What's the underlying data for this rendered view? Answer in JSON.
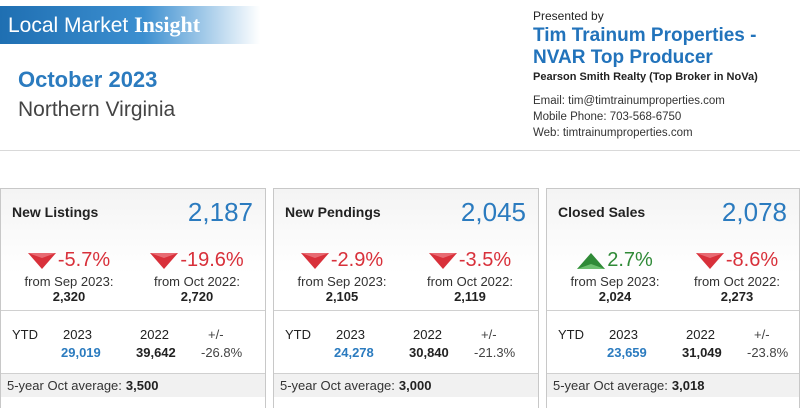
{
  "header": {
    "banner_light": "Local Market ",
    "banner_bold": "Insight",
    "month": "October 2023",
    "region": "Northern Virginia"
  },
  "presenter": {
    "presented_by": "Presented by",
    "name_line1": "Tim Trainum Properties -",
    "name_line2": "NVAR Top Producer",
    "brokerage": "Pearson Smith Realty (Top Broker in NoVa)",
    "email": "Email: tim@timtrainumproperties.com",
    "phone": "Mobile Phone: 703-568-6750",
    "web": "Web: timtrainumproperties.com"
  },
  "colors": {
    "accent": "#2b7bbf",
    "down": "#d8303a",
    "up": "#2f8a37"
  },
  "cards": [
    {
      "title": "New Listings",
      "total": "2,187",
      "mom": {
        "direction": "down",
        "pct": "-5.7%",
        "from": "from Sep 2023:",
        "prior": "2,320"
      },
      "yoy": {
        "direction": "down",
        "pct": "-19.6%",
        "from": "from Oct 2022:",
        "prior": "2,720"
      },
      "ytd": {
        "label": "YTD",
        "year1": "2023",
        "year2": "2022",
        "pm_label": "+/-",
        "val1": "29,019",
        "val2": "39,642",
        "pm": "-26.8%"
      },
      "avg": {
        "label": "5-year Oct average:",
        "value": "3,500"
      }
    },
    {
      "title": "New Pendings",
      "total": "2,045",
      "mom": {
        "direction": "down",
        "pct": "-2.9%",
        "from": "from Sep 2023:",
        "prior": "2,105"
      },
      "yoy": {
        "direction": "down",
        "pct": "-3.5%",
        "from": "from Oct 2022:",
        "prior": "2,119"
      },
      "ytd": {
        "label": "YTD",
        "year1": "2023",
        "year2": "2022",
        "pm_label": "+/-",
        "val1": "24,278",
        "val2": "30,840",
        "pm": "-21.3%"
      },
      "avg": {
        "label": "5-year Oct average:",
        "value": "3,000"
      }
    },
    {
      "title": "Closed Sales",
      "total": "2,078",
      "mom": {
        "direction": "up",
        "pct": "2.7%",
        "from": "from Sep 2023:",
        "prior": "2,024"
      },
      "yoy": {
        "direction": "down",
        "pct": "-8.6%",
        "from": "from Oct 2022:",
        "prior": "2,273"
      },
      "ytd": {
        "label": "YTD",
        "year1": "2023",
        "year2": "2022",
        "pm_label": "+/-",
        "val1": "23,659",
        "val2": "31,049",
        "pm": "-23.8%"
      },
      "avg": {
        "label": "5-year Oct average:",
        "value": "3,018"
      }
    }
  ]
}
